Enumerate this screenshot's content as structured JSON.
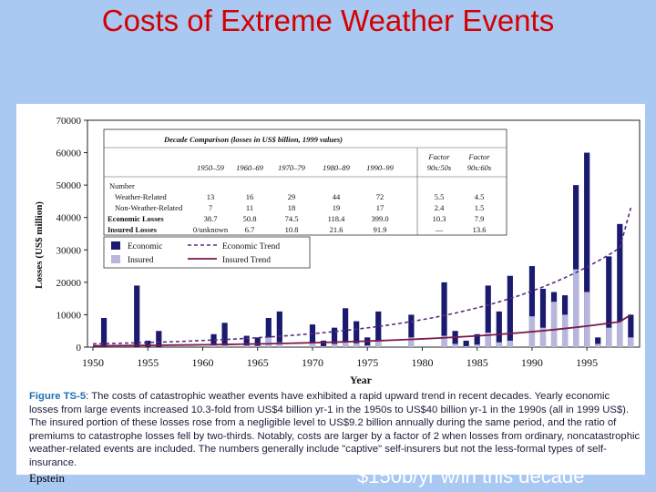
{
  "slide": {
    "title": "Costs of Extreme Weather Events",
    "author": "Epstein",
    "bottom_text": "$150b/yr w/in this decade"
  },
  "caption": {
    "lead": "Figure TS-5",
    "text": ": The costs of catastrophic weather events have exhibited a rapid upward trend in recent decades. Yearly economic losses from large events increased 10.3-fold from US$4 billion yr-1 in the 1950s to US$40 billion yr-1 in the 1990s (all in 1999 US$). The insured portion of these losses rose from a negligible level to US$9.2 billion annually during the same period, and the ratio of premiums to catastrophe losses fell by two-thirds. Notably, costs are larger by a factor of 2 when losses from ordinary, noncatastrophic weather-related events are included. The numbers generally include \"captive\" self-insurers but not the less-formal types of self-insurance."
  },
  "table": {
    "title": "Decade Comparison (losses in US$ billion, 1999 values)",
    "columns": [
      "1950–59",
      "1960–69",
      "1970–79",
      "1980–89",
      "1990–99"
    ],
    "factor_columns": [
      "Factor 90s:50s",
      "Factor 90s:60s"
    ],
    "row_header": "Number",
    "rows": [
      {
        "label": "Weather-Related",
        "values": [
          "13",
          "16",
          "29",
          "44",
          "72"
        ],
        "factors": [
          "5.5",
          "4.5"
        ]
      },
      {
        "label": "Non-Weather-Related",
        "values": [
          "7",
          "11",
          "18",
          "19",
          "17"
        ],
        "factors": [
          "2.4",
          "1.5"
        ]
      },
      {
        "label": "Economic Losses",
        "values": [
          "38.7",
          "50.8",
          "74.5",
          "118.4",
          "399.0"
        ],
        "factors": [
          "10.3",
          "7.9"
        ]
      },
      {
        "label": "Insured Losses",
        "values": [
          "0/unknown",
          "6.7",
          "10.8",
          "21.6",
          "91.9"
        ],
        "factors": [
          "—",
          "13.6"
        ]
      }
    ]
  },
  "chart_data": {
    "type": "bar",
    "title": "",
    "xlabel": "Year",
    "ylabel": "Losses (US$ million)",
    "ylim": [
      0,
      70000
    ],
    "yticks": [
      0,
      10000,
      20000,
      30000,
      40000,
      50000,
      60000,
      70000
    ],
    "xticks": [
      1950,
      1955,
      1960,
      1965,
      1970,
      1975,
      1980,
      1985,
      1990,
      1995
    ],
    "x": [
      1950,
      1951,
      1952,
      1953,
      1954,
      1955,
      1956,
      1957,
      1958,
      1959,
      1960,
      1961,
      1962,
      1963,
      1964,
      1965,
      1966,
      1967,
      1968,
      1969,
      1970,
      1971,
      1972,
      1973,
      1974,
      1975,
      1976,
      1977,
      1978,
      1979,
      1980,
      1981,
      1982,
      1983,
      1984,
      1985,
      1986,
      1987,
      1988,
      1989,
      1990,
      1991,
      1992,
      1993,
      1994,
      1995,
      1996,
      1997,
      1998,
      1999
    ],
    "legend": [
      {
        "name": "Economic",
        "color": "#1a1a6e"
      },
      {
        "name": "Insured",
        "color": "#b7b7de"
      },
      {
        "name": "Economic Trend",
        "color": "#5a2c80"
      },
      {
        "name": "Insured Trend",
        "color": "#7a1a4a"
      }
    ],
    "series": [
      {
        "name": "Economic",
        "values": [
          0,
          9000,
          0,
          0,
          19000,
          2000,
          5000,
          0,
          0,
          0,
          0,
          4000,
          7500,
          0,
          3500,
          3000,
          9000,
          11000,
          0,
          0,
          7000,
          2000,
          6000,
          12000,
          8000,
          3000,
          11000,
          0,
          0,
          10000,
          0,
          0,
          20000,
          5000,
          2000,
          4000,
          19000,
          11000,
          22000,
          0,
          25000,
          18000,
          17000,
          16000,
          50000,
          60000,
          3000,
          28000,
          38000,
          10000
        ]
      },
      {
        "name": "Insured",
        "values": [
          0,
          0,
          0,
          0,
          0,
          0,
          0,
          0,
          0,
          0,
          0,
          1000,
          500,
          0,
          500,
          400,
          3000,
          1500,
          0,
          0,
          1200,
          300,
          1000,
          1500,
          1200,
          500,
          2000,
          0,
          0,
          3000,
          0,
          0,
          3500,
          1000,
          300,
          800,
          4500,
          1500,
          2000,
          0,
          9500,
          6000,
          14000,
          10000,
          24000,
          17000,
          1000,
          6000,
          8000,
          3000
        ]
      },
      {
        "name": "Economic Trend",
        "values": [
          1000,
          1070,
          1150,
          1240,
          1330,
          1430,
          1530,
          1650,
          1770,
          1900,
          2040,
          2190,
          2350,
          2520,
          2710,
          2910,
          3130,
          3360,
          3600,
          3870,
          4160,
          4460,
          4790,
          5150,
          5530,
          5940,
          6380,
          6850,
          7350,
          7900,
          8480,
          9100,
          9780,
          10500,
          11280,
          12110,
          13010,
          13970,
          15000,
          16110,
          17300,
          18580,
          19950,
          21430,
          23010,
          24710,
          26540,
          28500,
          30600,
          43000
        ]
      },
      {
        "name": "Insured Trend",
        "values": [
          400,
          420,
          450,
          480,
          510,
          540,
          570,
          610,
          650,
          690,
          730,
          780,
          830,
          880,
          940,
          1000,
          1060,
          1130,
          1200,
          1280,
          1360,
          1450,
          1540,
          1640,
          1750,
          1860,
          1980,
          2110,
          2250,
          2390,
          2550,
          2710,
          2890,
          3070,
          3270,
          3480,
          3700,
          3940,
          4200,
          4470,
          4760,
          5070,
          5390,
          5740,
          6110,
          6500,
          6920,
          7370,
          7840,
          10000
        ]
      }
    ]
  }
}
